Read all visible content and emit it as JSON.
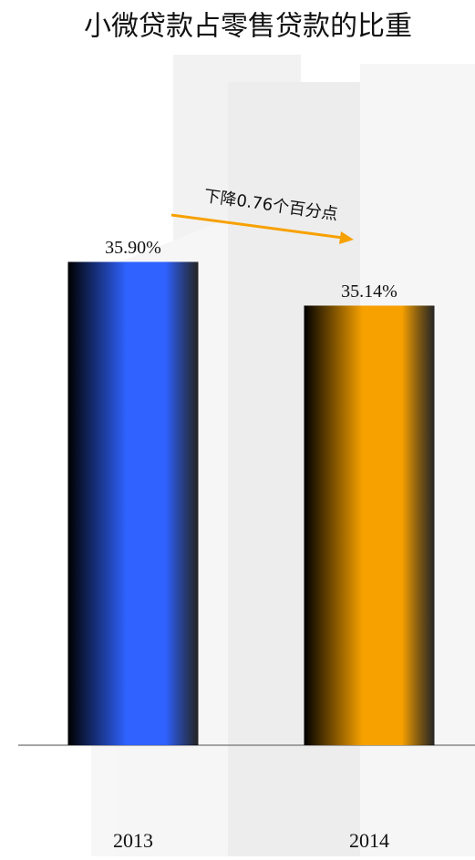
{
  "chart_data": {
    "type": "bar",
    "title": "小微贷款占零售贷款的比重",
    "categories": [
      "2013",
      "2014"
    ],
    "values": [
      35.9,
      35.14
    ],
    "value_labels": [
      "35.90%",
      "35.14%"
    ],
    "colors": [
      "#2f62ff",
      "#f7a100"
    ],
    "ylim": [
      27.5,
      37
    ],
    "annotation": "下降0.76个百分点"
  }
}
